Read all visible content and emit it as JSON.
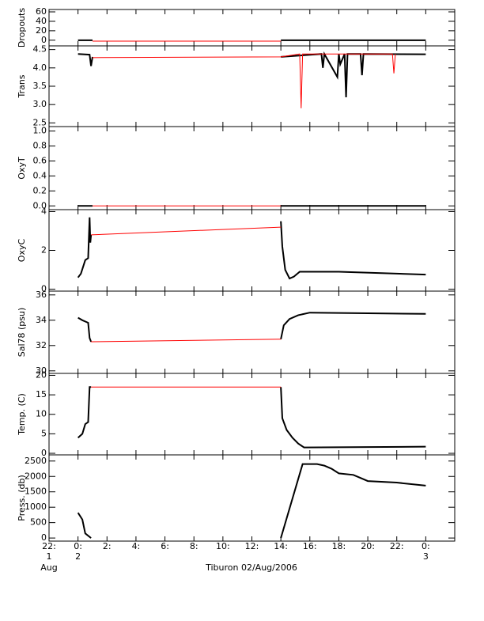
{
  "chart_data": [
    {
      "type": "line",
      "ylabel": "Dropouts",
      "ylim": [
        -12,
        65
      ],
      "yticks": [
        0,
        20,
        40,
        60
      ],
      "series": [
        {
          "color": "#000000",
          "x": [
            0,
            1,
            null,
            14,
            24
          ],
          "values": [
            0,
            0,
            null,
            0,
            0
          ]
        },
        {
          "color": "#ff0000",
          "x": [
            1,
            14
          ],
          "values": [
            -2,
            -2
          ]
        }
      ]
    },
    {
      "type": "line",
      "ylabel": "Trans",
      "ylim": [
        2.4,
        4.6
      ],
      "yticks": [
        2.5,
        {
          "value": 3.0,
          "label": "3.0"
        },
        3.5,
        {
          "value": 4.0,
          "label": "4.0"
        },
        4.5
      ],
      "series": [
        {
          "color": "#000000",
          "x": [
            0,
            0.8,
            0.9,
            1,
            null,
            14,
            16.8,
            16.9,
            17,
            17.9,
            18,
            18.1,
            18.4,
            18.5,
            18.6,
            19.5,
            19.6,
            19.7,
            24
          ],
          "values": [
            4.38,
            4.36,
            4.05,
            4.3,
            null,
            4.3,
            4.38,
            4.0,
            4.38,
            3.75,
            4.38,
            4.1,
            4.38,
            3.2,
            4.38,
            4.38,
            3.8,
            4.38,
            4.37
          ]
        },
        {
          "color": "#ff0000",
          "x": [
            1,
            14,
            15.3,
            15.4,
            15.5,
            21.7,
            21.8,
            21.9
          ],
          "values": [
            4.28,
            4.3,
            4.38,
            2.9,
            4.38,
            4.38,
            3.85,
            4.38
          ]
        }
      ]
    },
    {
      "type": "line",
      "ylabel": "OxyT",
      "ylim": [
        -0.05,
        1.06
      ],
      "yticks": [
        {
          "value": 0.0,
          "label": "0.0"
        },
        0.2,
        0.4,
        0.6,
        0.8,
        {
          "value": 1.0,
          "label": "1.0"
        }
      ],
      "series": [
        {
          "color": "#000000",
          "x": [
            0,
            1,
            null,
            14,
            24
          ],
          "values": [
            0,
            0,
            null,
            0,
            0
          ]
        },
        {
          "color": "#ff0000",
          "x": [
            1,
            14
          ],
          "values": [
            0,
            0
          ]
        }
      ]
    },
    {
      "type": "line",
      "ylabel": "OxyC",
      "ylim": [
        -0.1,
        4.1
      ],
      "yticks": [
        0,
        2,
        4
      ],
      "series": [
        {
          "color": "#000000",
          "x": [
            0,
            0.2,
            0.5,
            0.7,
            0.8,
            0.85,
            0.9,
            null,
            14,
            14.1,
            14.3,
            14.6,
            14.9,
            15.3,
            18,
            22,
            24
          ],
          "values": [
            0.6,
            0.8,
            1.5,
            1.6,
            3.7,
            2.4,
            2.8,
            null,
            3.5,
            2.2,
            1.0,
            0.55,
            0.65,
            0.9,
            0.9,
            0.8,
            0.75
          ]
        },
        {
          "color": "#ff0000",
          "x": [
            0.9,
            14
          ],
          "values": [
            2.8,
            3.2
          ]
        }
      ]
    },
    {
      "type": "line",
      "ylabel": "Sal78 (psu)",
      "ylim": [
        29.8,
        36.3
      ],
      "yticks": [
        30,
        32,
        34,
        36
      ],
      "series": [
        {
          "color": "#000000",
          "x": [
            0,
            0.3,
            0.7,
            0.8,
            0.9,
            null,
            14,
            14.2,
            14.6,
            15.2,
            16,
            20,
            24
          ],
          "values": [
            34.2,
            34.0,
            33.8,
            32.6,
            32.3,
            null,
            32.5,
            33.6,
            34.1,
            34.4,
            34.6,
            34.55,
            34.5
          ]
        },
        {
          "color": "#ff0000",
          "x": [
            0.9,
            14
          ],
          "values": [
            32.3,
            32.5
          ]
        }
      ]
    },
    {
      "type": "line",
      "ylabel": "Temp. (C)",
      "ylim": [
        -0.4,
        20.5
      ],
      "yticks": [
        0,
        5,
        10,
        15,
        20
      ],
      "series": [
        {
          "color": "#000000",
          "x": [
            0,
            0.3,
            0.5,
            0.7,
            0.8,
            0.9,
            null,
            14,
            14.1,
            14.4,
            14.8,
            15.2,
            15.6,
            20,
            24
          ],
          "values": [
            4,
            5,
            7.5,
            8,
            17,
            17,
            null,
            17,
            9,
            6,
            4,
            2.5,
            1.5,
            1.6,
            1.7
          ]
        },
        {
          "color": "#ff0000",
          "x": [
            0.9,
            14
          ],
          "values": [
            17,
            17
          ]
        }
      ]
    },
    {
      "type": "line",
      "ylabel": "Press. (db)",
      "ylim": [
        -100,
        2700
      ],
      "yticks": [
        0,
        500,
        1000,
        1500,
        2000,
        2500
      ],
      "series": [
        {
          "color": "#000000",
          "x": [
            0,
            0.3,
            0.5,
            0.9,
            null,
            14,
            15.5,
            16.5,
            17,
            17.5,
            18,
            19,
            19.5,
            20,
            22,
            24
          ],
          "values": [
            820,
            600,
            150,
            0,
            null,
            0,
            2400,
            2400,
            2350,
            2250,
            2100,
            2050,
            1950,
            1850,
            1800,
            1700
          ]
        }
      ]
    }
  ],
  "x_axis": {
    "xlim": [
      -2,
      26
    ],
    "xticks": [
      {
        "value": -2,
        "label": "22:"
      },
      {
        "value": 0,
        "label": "0:"
      },
      {
        "value": 2,
        "label": "2:"
      },
      {
        "value": 4,
        "label": "4:"
      },
      {
        "value": 6,
        "label": "6:"
      },
      {
        "value": 8,
        "label": "8:"
      },
      {
        "value": 10,
        "label": "10:"
      },
      {
        "value": 12,
        "label": "12:"
      },
      {
        "value": 14,
        "label": "14:"
      },
      {
        "value": 16,
        "label": "16:"
      },
      {
        "value": 18,
        "label": "18:"
      },
      {
        "value": 20,
        "label": "20:"
      },
      {
        "value": 22,
        "label": "22:"
      },
      {
        "value": 24,
        "label": "0:"
      }
    ],
    "date_labels": [
      {
        "value": -2,
        "label": "1"
      },
      {
        "value": 0,
        "label": "2"
      },
      {
        "value": 24,
        "label": "3"
      }
    ],
    "month_label": "Aug",
    "xlabel": "Tiburon 02/Aug/2006"
  }
}
